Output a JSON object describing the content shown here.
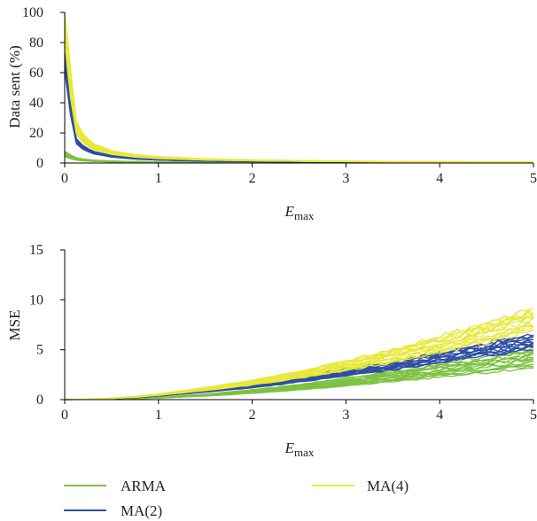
{
  "colors": {
    "ARMA": "#7dc242",
    "MA(2)": "#2e4fa3",
    "MA(4)": "#e8e83a",
    "axis": "#000000"
  },
  "legend": {
    "placement": "bottom",
    "entries": [
      "ARMA",
      "MA(2)",
      "MA(4)"
    ]
  },
  "chart_data": [
    {
      "type": "line",
      "title": "",
      "xlabel": "E",
      "xlabel_sub": "max",
      "ylabel": "Data sent (%)",
      "xlim": [
        0,
        5
      ],
      "ylim": [
        0,
        100
      ],
      "xticks": [
        "0",
        "1",
        "2",
        "3",
        "4",
        "5"
      ],
      "yticks": [
        "0",
        "20",
        "40",
        "60",
        "80",
        "100"
      ],
      "grid": false,
      "note": "multiple runs per series (bundles of lines)",
      "series": [
        {
          "name": "ARMA",
          "x": [
            0,
            0.1,
            0.2,
            0.3,
            0.5,
            0.75,
            1,
            1.5,
            2,
            2.5,
            3,
            4,
            5
          ],
          "values": [
            6,
            3,
            2,
            1.5,
            1,
            0.8,
            0.6,
            0.4,
            0.3,
            0.25,
            0.2,
            0.15,
            0.1
          ],
          "spread": 0.3
        },
        {
          "name": "MA(2)",
          "x": [
            0,
            0.1,
            0.2,
            0.3,
            0.5,
            0.75,
            1,
            1.5,
            2,
            2.5,
            3,
            4,
            5
          ],
          "values": [
            70,
            16,
            10,
            7,
            4.5,
            3,
            2.2,
            1.4,
            1,
            0.8,
            0.6,
            0.4,
            0.3
          ],
          "spread": 0.12
        },
        {
          "name": "MA(4)",
          "x": [
            0,
            0.1,
            0.2,
            0.3,
            0.5,
            0.75,
            1,
            1.5,
            2,
            2.5,
            3,
            4,
            5
          ],
          "values": [
            98,
            26,
            16,
            11,
            7,
            4.8,
            3.6,
            2.4,
            1.8,
            1.4,
            1.1,
            0.8,
            0.6
          ],
          "spread": 0.18
        }
      ]
    },
    {
      "type": "line",
      "title": "",
      "xlabel": "E",
      "xlabel_sub": "max",
      "ylabel": "MSE",
      "xlim": [
        0,
        5
      ],
      "ylim": [
        0,
        15
      ],
      "xticks": [
        "0",
        "1",
        "2",
        "3",
        "4",
        "5"
      ],
      "yticks": [
        "0",
        "5",
        "10",
        "15"
      ],
      "grid": false,
      "note": "multiple runs per series (bundles of lines)",
      "series": [
        {
          "name": "ARMA",
          "x": [
            0,
            0.25,
            0.5,
            0.75,
            1,
            1.5,
            2,
            2.5,
            3,
            3.5,
            4,
            4.5,
            5
          ],
          "values": [
            0,
            0.02,
            0.06,
            0.12,
            0.2,
            0.45,
            0.8,
            1.25,
            1.75,
            2.3,
            2.9,
            3.5,
            4.2
          ],
          "spread": 0.22
        },
        {
          "name": "MA(2)",
          "x": [
            0,
            0.25,
            0.5,
            0.75,
            1,
            1.5,
            2,
            2.5,
            3,
            3.5,
            4,
            4.5,
            5
          ],
          "values": [
            0,
            0.03,
            0.1,
            0.22,
            0.4,
            0.85,
            1.35,
            2.0,
            2.7,
            3.4,
            4.2,
            5.0,
            5.9
          ],
          "spread": 0.12
        },
        {
          "name": "MA(4)",
          "x": [
            0,
            0.25,
            0.5,
            0.75,
            1,
            1.5,
            2,
            2.5,
            3,
            3.5,
            4,
            4.5,
            5
          ],
          "values": [
            0,
            0.04,
            0.13,
            0.28,
            0.5,
            1.05,
            1.7,
            2.5,
            3.4,
            4.4,
            5.5,
            6.7,
            8.0
          ],
          "spread": 0.14
        }
      ]
    }
  ]
}
